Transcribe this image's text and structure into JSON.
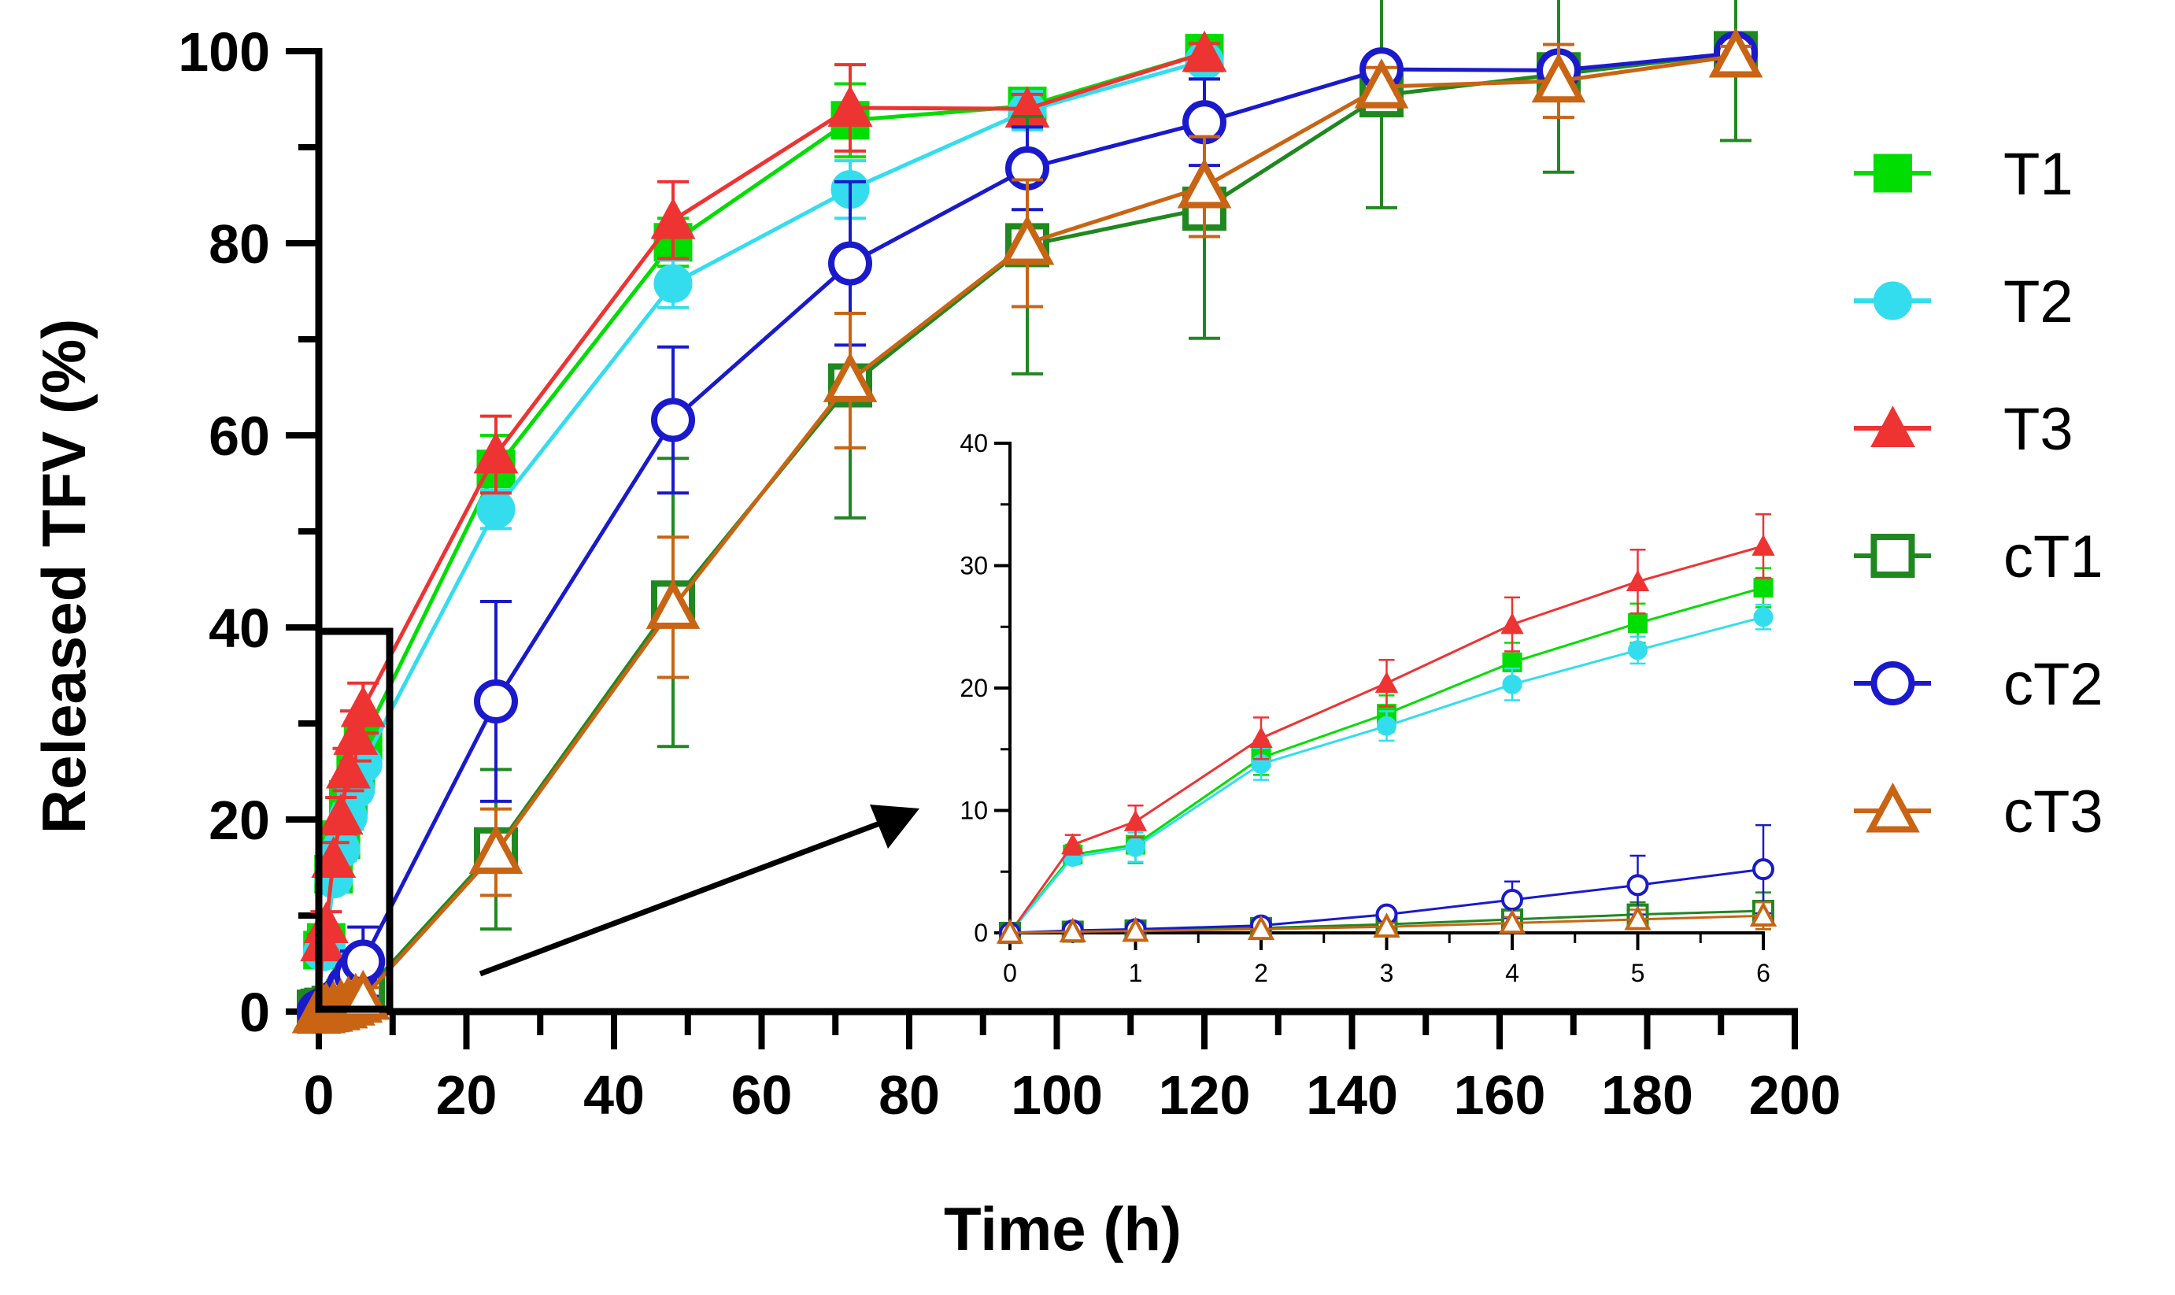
{
  "chart_data": [
    {
      "id": "main",
      "type": "line",
      "xlabel": "Time (h)",
      "ylabel": "Released TFV (%)",
      "xlim": [
        0,
        200
      ],
      "ylim": [
        0,
        100
      ],
      "xticks": [
        0,
        20,
        40,
        60,
        80,
        100,
        120,
        140,
        160,
        180,
        200
      ],
      "yticks": [
        0,
        20,
        40,
        60,
        80,
        100
      ],
      "legend_position": "right",
      "series": [
        {
          "name": "T1",
          "color": "#00dd00",
          "marker": "square-filled",
          "x": [
            0,
            0.5,
            1,
            2,
            3,
            4,
            5,
            6,
            24,
            48,
            72,
            96,
            120
          ],
          "y": [
            0,
            6.4,
            7.2,
            14.3,
            17.9,
            22.1,
            25.3,
            28.2,
            56.5,
            80.1,
            92.8,
            94.3,
            99.8
          ],
          "err": [
            0.2,
            0.8,
            1.5,
            1.4,
            1.5,
            1.6,
            1.6,
            1.6,
            3.5,
            2.5,
            3.8,
            1.5,
            1.0
          ]
        },
        {
          "name": "T2",
          "color": "#33ddee",
          "marker": "circle-filled",
          "x": [
            0,
            0.5,
            1,
            2,
            3,
            4,
            5,
            6,
            24,
            48,
            72,
            96,
            120
          ],
          "y": [
            0,
            6.2,
            7.0,
            13.8,
            16.9,
            20.3,
            23.1,
            25.8,
            52.3,
            75.8,
            85.6,
            93.8,
            99.0
          ],
          "err": [
            0.2,
            0.6,
            1.2,
            1.3,
            1.2,
            1.3,
            1.1,
            1.0,
            2.0,
            2.5,
            3.0,
            2.0,
            1.0
          ]
        },
        {
          "name": "T3",
          "color": "#ee3333",
          "marker": "triangle-filled",
          "x": [
            0,
            0.5,
            1,
            2,
            3,
            4,
            5,
            6,
            24,
            48,
            72,
            96,
            120
          ],
          "y": [
            0,
            7.2,
            9.1,
            15.9,
            20.4,
            25.2,
            28.7,
            31.6,
            58.0,
            82.4,
            94.1,
            94.0,
            99.8
          ],
          "err": [
            0.2,
            0.8,
            1.3,
            1.7,
            1.9,
            2.2,
            2.6,
            2.6,
            4.0,
            4.0,
            4.5,
            1.5,
            1.0
          ]
        },
        {
          "name": "cT1",
          "color": "#208820",
          "marker": "square-open",
          "x": [
            0,
            0.5,
            1,
            2,
            3,
            4,
            5,
            6,
            24,
            48,
            72,
            96,
            120,
            144,
            168,
            192
          ],
          "y": [
            0,
            0.1,
            0.2,
            0.4,
            0.7,
            1.1,
            1.5,
            1.8,
            16.9,
            42.6,
            65.2,
            79.8,
            83.6,
            95.4,
            97.6,
            99.8
          ],
          "err": [
            0.1,
            0.1,
            0.1,
            0.3,
            0.5,
            0.8,
            1.0,
            1.5,
            8.3,
            15.0,
            13.8,
            13.4,
            13.5,
            11.7,
            10.2,
            9.1
          ]
        },
        {
          "name": "cT2",
          "color": "#1a1acc",
          "marker": "circle-open",
          "x": [
            0,
            0.5,
            1,
            2,
            3,
            4,
            5,
            6,
            24,
            48,
            72,
            96,
            120,
            144,
            168,
            192
          ],
          "y": [
            0,
            0.2,
            0.3,
            0.6,
            1.5,
            2.7,
            3.9,
            5.2,
            32.3,
            61.6,
            77.9,
            87.8,
            92.6,
            98.1,
            98.0,
            99.8
          ],
          "err": [
            0.1,
            0.1,
            0.1,
            0.2,
            0.4,
            1.5,
            2.4,
            3.6,
            10.4,
            7.6,
            8.5,
            4.3,
            4.5,
            1.5,
            1.5,
            1.0
          ]
        },
        {
          "name": "cT3",
          "color": "#c86414",
          "marker": "triangle-open",
          "x": [
            0,
            0.5,
            1,
            2,
            3,
            4,
            5,
            6,
            24,
            48,
            72,
            96,
            120,
            144,
            168,
            192
          ],
          "y": [
            0,
            0.1,
            0.15,
            0.3,
            0.5,
            0.8,
            1.1,
            1.4,
            16.6,
            42.1,
            65.7,
            80.0,
            85.9,
            96.3,
            96.9,
            99.5
          ],
          "err": [
            0.1,
            0.1,
            0.1,
            0.2,
            0.3,
            0.5,
            0.8,
            1.1,
            4.5,
            7.3,
            7.0,
            6.6,
            5.2,
            2.0,
            3.8,
            1.0
          ]
        }
      ],
      "annotations": [
        "Zoom box around 0-6 h region with arrow pointing to inset"
      ]
    },
    {
      "id": "inset",
      "type": "line",
      "xlabel": "",
      "ylabel": "",
      "xlim": [
        0,
        6
      ],
      "ylim": [
        0,
        40
      ],
      "xticks": [
        0,
        1,
        2,
        3,
        4,
        5,
        6
      ],
      "yticks": [
        0,
        10,
        20,
        30,
        40
      ],
      "note": "Inset shows the 0-6 h portion of the same six series"
    }
  ],
  "legend": {
    "items": [
      {
        "label": "T1",
        "color": "#00dd00",
        "marker": "square-filled"
      },
      {
        "label": "T2",
        "color": "#33ddee",
        "marker": "circle-filled"
      },
      {
        "label": "T3",
        "color": "#ee3333",
        "marker": "triangle-filled"
      },
      {
        "label": "cT1",
        "color": "#208820",
        "marker": "square-open"
      },
      {
        "label": "cT2",
        "color": "#1a1acc",
        "marker": "circle-open"
      },
      {
        "label": "cT3",
        "color": "#c86414",
        "marker": "triangle-open"
      }
    ]
  }
}
